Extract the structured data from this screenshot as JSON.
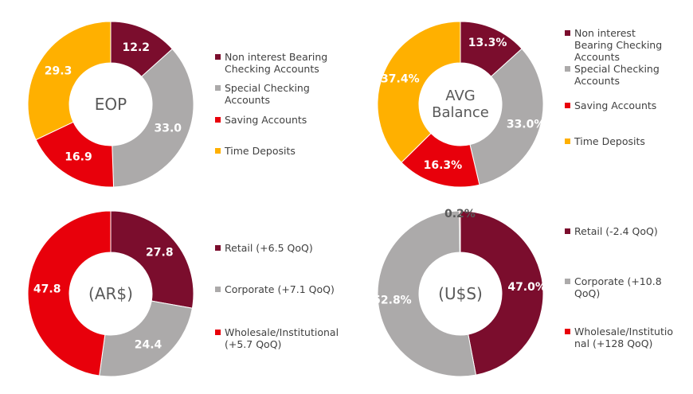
{
  "colors": {
    "maroon": "#7b0d2d",
    "gray": "#acaaaa",
    "red": "#e8000b",
    "orange": "#ffb000"
  },
  "chart_data": [
    {
      "type": "pie",
      "id": "eop",
      "center_label": [
        "EOP"
      ],
      "slices": [
        {
          "name": "Non interest Bearing Checking Accounts",
          "value": 12.2,
          "label": "12.2",
          "color": "#7b0d2d"
        },
        {
          "name": "Special Checking Accounts",
          "value": 33.0,
          "label": "33.0",
          "color": "#acaaaa"
        },
        {
          "name": "Saving Accounts",
          "value": 16.9,
          "label": "16.9",
          "color": "#e8000b"
        },
        {
          "name": "Time Deposits",
          "value": 29.3,
          "label": "29.3",
          "color": "#ffb000"
        }
      ],
      "legend": [
        {
          "lines": [
            "Non interest Bearing",
            "Checking Accounts"
          ],
          "color": "#7b0d2d"
        },
        {
          "lines": [
            "Special Checking",
            "Accounts"
          ],
          "color": "#acaaaa"
        },
        {
          "lines": [
            "Saving Accounts"
          ],
          "color": "#e8000b"
        },
        {
          "lines": [
            "Time Deposits"
          ],
          "color": "#ffb000"
        }
      ]
    },
    {
      "type": "pie",
      "id": "avg",
      "center_label": [
        "AVG",
        "Balance"
      ],
      "slices": [
        {
          "name": "Non interest Bearing Checking Accounts",
          "value": 13.3,
          "label": "13.3%",
          "color": "#7b0d2d"
        },
        {
          "name": "Special Checking Accounts",
          "value": 33.0,
          "label": "33.0%",
          "color": "#acaaaa"
        },
        {
          "name": "Saving Accounts",
          "value": 16.3,
          "label": "16.3%",
          "color": "#e8000b"
        },
        {
          "name": "Time Deposits",
          "value": 37.4,
          "label": "37.4%",
          "color": "#ffb000"
        }
      ],
      "legend": [
        {
          "lines": [
            "Non interest",
            "Bearing Checking",
            "Accounts"
          ],
          "color": "#7b0d2d"
        },
        {
          "lines": [
            "Special Checking",
            "Accounts"
          ],
          "color": "#acaaaa"
        },
        {
          "lines": [
            "Saving Accounts"
          ],
          "color": "#e8000b"
        },
        {
          "lines": [
            "Time Deposits"
          ],
          "color": "#ffb000"
        }
      ]
    },
    {
      "type": "pie",
      "id": "ars",
      "center_label": [
        "(AR$)"
      ],
      "slices": [
        {
          "name": "Retail",
          "value": 27.8,
          "label": "27.8",
          "color": "#7b0d2d"
        },
        {
          "name": "Corporate",
          "value": 24.4,
          "label": "24.4",
          "color": "#acaaaa"
        },
        {
          "name": "Wholesale/Institutional",
          "value": 47.8,
          "label": "47.8",
          "color": "#e8000b"
        }
      ],
      "legend": [
        {
          "lines": [
            "Retail (+6.5 QoQ)"
          ],
          "color": "#7b0d2d"
        },
        {
          "lines": [
            "Corporate (+7.1 QoQ)"
          ],
          "color": "#acaaaa"
        },
        {
          "lines": [
            "Wholesale/Institutional",
            "(+5.7 QoQ)"
          ],
          "color": "#e8000b"
        }
      ]
    },
    {
      "type": "pie",
      "id": "usd",
      "center_label": [
        "(U$S)"
      ],
      "slices": [
        {
          "name": "Retail",
          "value": 47.0,
          "label": "47.0%",
          "color": "#7b0d2d"
        },
        {
          "name": "Corporate",
          "value": 52.8,
          "label": "52.8%",
          "color": "#acaaaa"
        },
        {
          "name": "Wholesale/Institutional",
          "value": 0.2,
          "label": "0.2%",
          "color": "#e8000b"
        }
      ],
      "legend": [
        {
          "lines": [
            "Retail (-2.4 QoQ)"
          ],
          "color": "#7b0d2d"
        },
        {
          "lines": [
            "Corporate (+10.8",
            "QoQ)"
          ],
          "color": "#acaaaa"
        },
        {
          "lines": [
            "Wholesale/Institutio",
            "nal (+128 QoQ)"
          ],
          "color": "#e8000b"
        }
      ]
    }
  ]
}
